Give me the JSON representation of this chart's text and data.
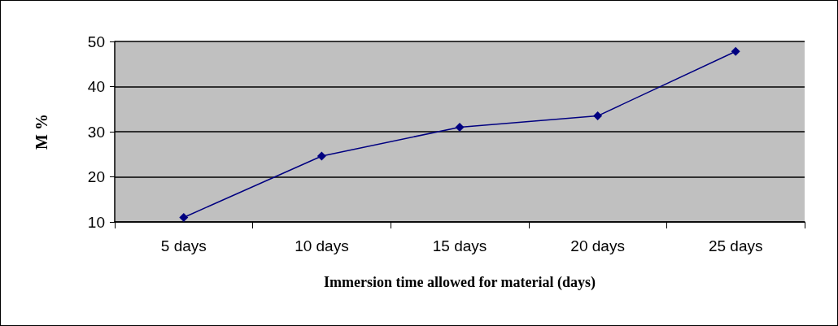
{
  "chart_data": {
    "type": "line",
    "xlabel": "Immersion time allowed for material (days)",
    "ylabel": "M %",
    "categories": [
      "5 days",
      "10 days",
      "15 days",
      "20 days",
      "25 days"
    ],
    "series": [
      {
        "color": "#000080",
        "values": [
          11,
          24.6,
          31,
          33.5,
          47.8
        ]
      }
    ],
    "ylim": [
      10,
      50
    ],
    "yticks": [
      10,
      20,
      30,
      40,
      50
    ],
    "grid": "y",
    "marker": "diamond",
    "line_style": "solid"
  }
}
